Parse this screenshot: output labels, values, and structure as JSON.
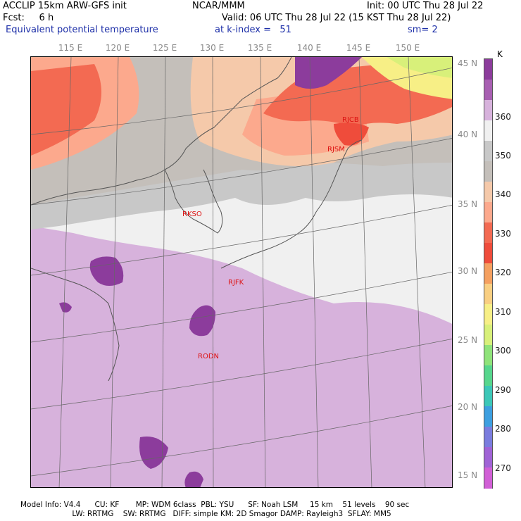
{
  "header": {
    "line1_left": "ACCLIP 15km ARW-GFS init",
    "line1_mid": "NCAR/MMM",
    "line1_right": "Init: 00 UTC Thu 28 Jul 22",
    "line2_left": "Fcst:     6 h",
    "line2_right": "Valid: 06 UTC Thu 28 Jul 22 (15 KST Thu 28 Jul 22)",
    "field": "Equivalent potential temperature",
    "level": "at k-index =   51",
    "smooth": "sm= 2"
  },
  "map": {
    "lon_labels": [
      "115 E",
      "120 E",
      "125 E",
      "130 E",
      "135 E",
      "140 E",
      "145 E",
      "150 E"
    ],
    "lat_labels": [
      "45 N",
      "40 N",
      "35 N",
      "30 N",
      "25 N",
      "20 N",
      "15 N"
    ],
    "stations": [
      "RJCB",
      "RJSM",
      "RKSO",
      "RJFK",
      "RODN"
    ]
  },
  "colorbar": {
    "unit": "K",
    "ticks": [
      "360",
      "350",
      "340",
      "330",
      "320",
      "310",
      "300",
      "290",
      "280",
      "270"
    ],
    "colors": [
      "#8c3c9c",
      "#a85fb2",
      "#d7b2dc",
      "#f0f0f0",
      "#c8c8c8",
      "#c4bfba",
      "#f5c9aa",
      "#fca98d",
      "#f36a52",
      "#ef4c3b",
      "#f5a060",
      "#f9cf82",
      "#f7ef86",
      "#d8f07a",
      "#8fe37a",
      "#57d68d",
      "#3cc7b8",
      "#3d9fe0",
      "#7a7cde",
      "#a063d6",
      "#d15fd6"
    ]
  },
  "footer": {
    "line1": "Model Info: V4.4      CU: KF       MP: WDM 6class  PBL: YSU      SF: Noah LSM     15 km    51 levels    90 sec",
    "line2": "                      LW: RRTMG    SW: RRTMG   DIFF: simple KM: 2D Smagor DAMP: Rayleigh3  SFLAY: MM5"
  }
}
